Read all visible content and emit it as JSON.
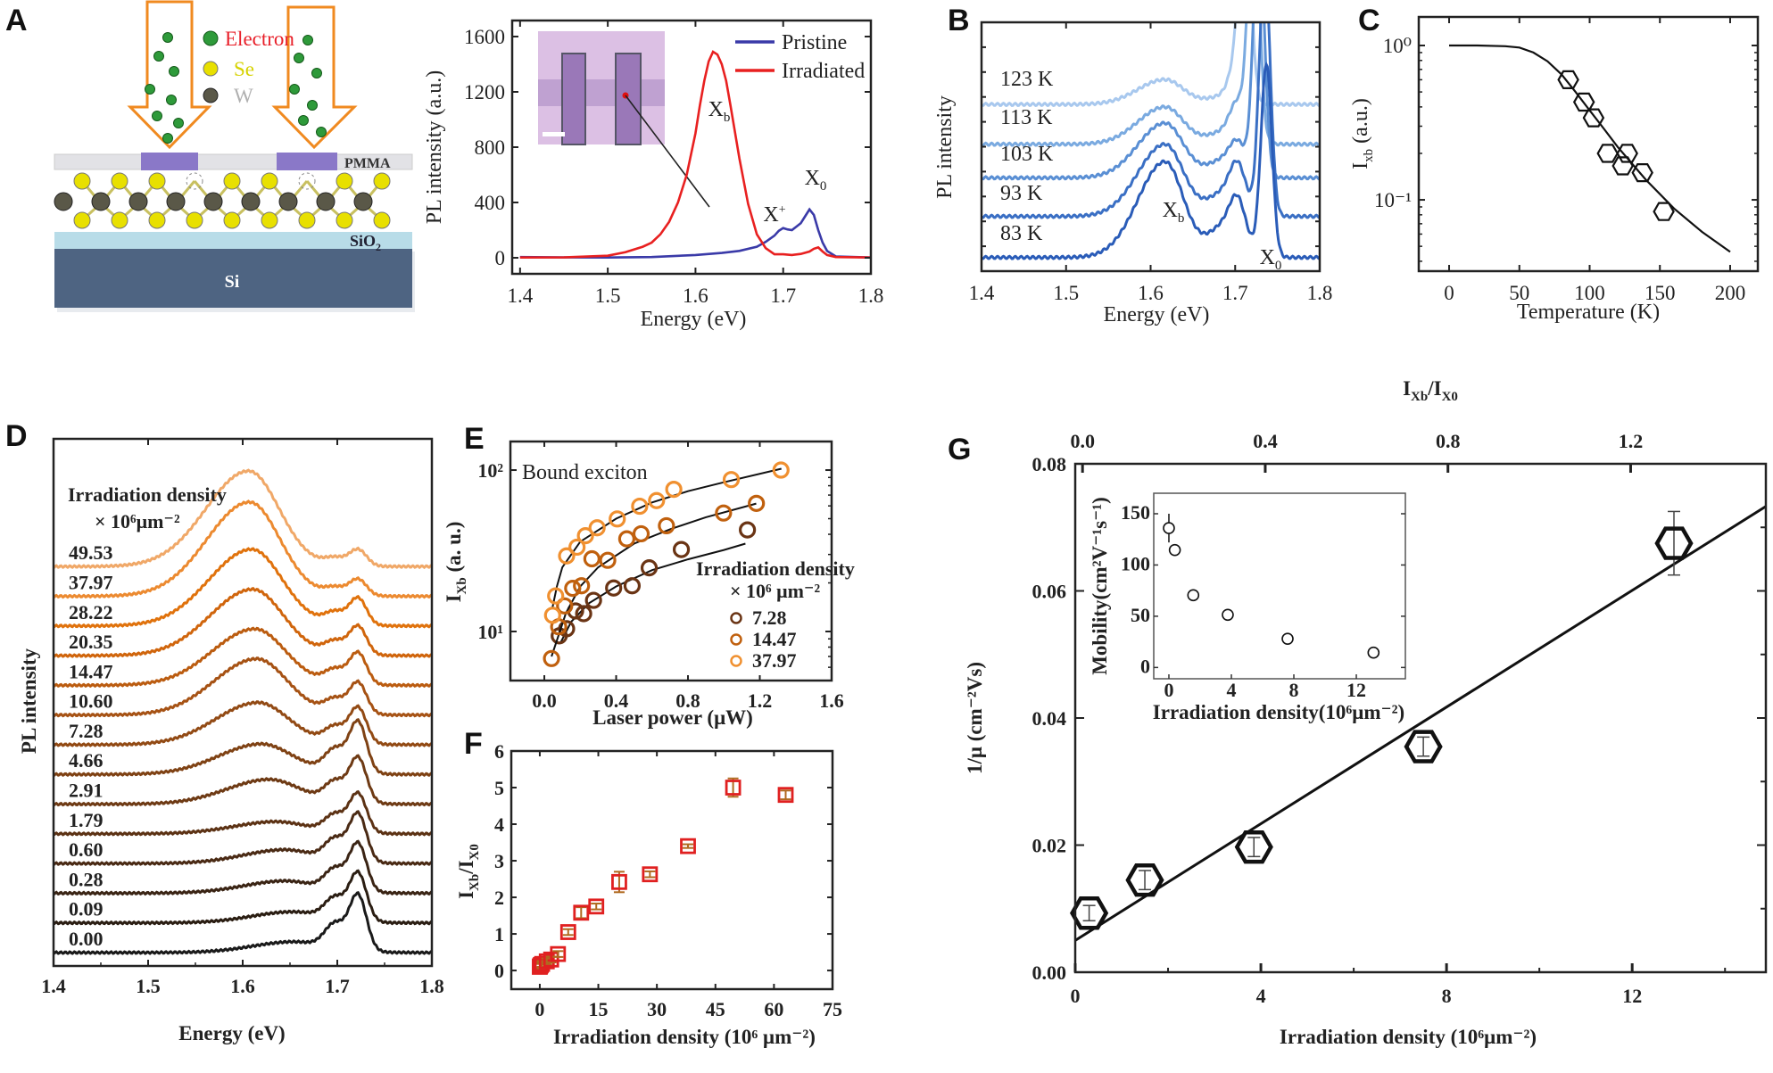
{
  "panels": {
    "a": "A",
    "b": "B",
    "c": "C",
    "d": "D",
    "e": "E",
    "f": "F",
    "g": "G"
  },
  "schematic": {
    "legend": [
      {
        "label": "Electron",
        "color": "#e8202a",
        "ball": "#2e9a3a"
      },
      {
        "label": "Se",
        "color": "#d6d200",
        "ball": "#e8e000"
      },
      {
        "label": "W",
        "color": "#b0b0b0",
        "ball": "#5a5848"
      }
    ],
    "pmma_label": "PMMA",
    "sio2_label": "SiO",
    "sio2_sub": "2",
    "si_label": "Si",
    "colors": {
      "arrow": "#f08a20",
      "pmma": "#e2e2e6",
      "window": "#8a78c8",
      "sio2": "#b8dce8",
      "si": "#4e6482"
    }
  },
  "chart_data": [
    {
      "id": "A",
      "type": "line",
      "xlabel": "Energy (eV)",
      "ylabel": "PL intensity (a.u.)",
      "xlim": [
        1.4,
        1.8
      ],
      "ylim": [
        0,
        1600
      ],
      "xticks": [
        1.4,
        1.5,
        1.6,
        1.7,
        1.8
      ],
      "yticks": [
        0,
        400,
        800,
        1200,
        1600
      ],
      "legend_position": "top-right",
      "series": [
        {
          "name": "Pristine",
          "color": "#3a3aa8",
          "x": [
            1.4,
            1.45,
            1.5,
            1.55,
            1.6,
            1.63,
            1.65,
            1.67,
            1.68,
            1.69,
            1.695,
            1.7,
            1.705,
            1.71,
            1.715,
            1.72,
            1.725,
            1.73,
            1.735,
            1.74,
            1.745,
            1.75,
            1.76,
            1.8
          ],
          "y": [
            5,
            3,
            2,
            5,
            20,
            35,
            50,
            80,
            115,
            160,
            195,
            215,
            205,
            200,
            225,
            250,
            300,
            350,
            310,
            200,
            110,
            50,
            10,
            2
          ]
        },
        {
          "name": "Irradiated",
          "color": "#e82020",
          "x": [
            1.4,
            1.45,
            1.5,
            1.52,
            1.54,
            1.55,
            1.56,
            1.57,
            1.58,
            1.59,
            1.6,
            1.605,
            1.61,
            1.615,
            1.62,
            1.625,
            1.63,
            1.635,
            1.64,
            1.65,
            1.66,
            1.67,
            1.68,
            1.69,
            1.7,
            1.71,
            1.72,
            1.73,
            1.735,
            1.74,
            1.745,
            1.75,
            1.76,
            1.8
          ],
          "y": [
            2,
            3,
            15,
            40,
            80,
            110,
            170,
            260,
            400,
            600,
            900,
            1100,
            1280,
            1420,
            1490,
            1470,
            1400,
            1280,
            1100,
            720,
            390,
            170,
            70,
            25,
            25,
            20,
            28,
            45,
            65,
            75,
            45,
            20,
            5,
            2
          ]
        }
      ],
      "annotations": [
        {
          "text": "X",
          "sub": "b"
        },
        {
          "text": "X",
          "sub": "0"
        },
        {
          "text": "X",
          "sup": "+"
        }
      ]
    },
    {
      "id": "B",
      "type": "line",
      "xlabel": "Energy (eV)",
      "ylabel": "PL intensity",
      "xlim": [
        1.4,
        1.8
      ],
      "xticks": [
        1.4,
        1.5,
        1.6,
        1.7,
        1.8
      ],
      "series": [
        {
          "name": "123 K",
          "color": "#a8c8ee",
          "baseline": 6.7,
          "xb_peak": 1.0,
          "x0_energy": 1.712,
          "x0_peak": 8,
          "trion_peak": 1.5
        },
        {
          "name": "113 K",
          "color": "#7aaae0",
          "baseline": 5.1,
          "xb_peak": 1.5,
          "x0_energy": 1.722,
          "x0_peak": 10,
          "trion_peak": 1.3
        },
        {
          "name": "103 K",
          "color": "#5a8fd4",
          "baseline": 3.75,
          "xb_peak": 2.2,
          "x0_energy": 1.728,
          "x0_peak": 10,
          "trion_peak": 0.9
        },
        {
          "name": "93 K",
          "color": "#3a6fc4",
          "baseline": 2.2,
          "xb_peak": 2.9,
          "x0_energy": 1.735,
          "x0_peak": 10,
          "trion_peak": 1.4
        },
        {
          "name": "83 K",
          "color": "#2a5cb8",
          "baseline": 0.55,
          "xb_peak": 3.85,
          "x0_energy": 1.737,
          "x0_peak": 7.7,
          "trion_peak": 1.4
        }
      ],
      "annotations": [
        {
          "text": "X",
          "sub": "b"
        },
        {
          "text": "X",
          "sub": "0"
        }
      ]
    },
    {
      "id": "C",
      "type": "scatter",
      "xlabel": "Temperature (K)",
      "ylabel": "I",
      "ylabel_sub": "xb",
      "ylabel_rest": " (a.u.)",
      "xlim": [
        0,
        200
      ],
      "xticks": [
        0,
        50,
        100,
        150,
        200
      ],
      "yscale": "log",
      "yticks": [
        1,
        0.1
      ],
      "ytick_labels": [
        "10⁰",
        "10⁻¹"
      ],
      "points": {
        "x": [
          84.8,
          96,
          102.8,
          112.8,
          126.8,
          123.6,
          137.6,
          152.8
        ],
        "y": [
          0.6,
          0.43,
          0.34,
          0.2,
          0.2,
          0.166,
          0.15,
          0.084
        ]
      },
      "fit": {
        "x": [
          0,
          20,
          40,
          50,
          60,
          70,
          80,
          90,
          100,
          110,
          120,
          140,
          160,
          180,
          200
        ],
        "y": [
          1,
          1,
          0.99,
          0.97,
          0.9,
          0.79,
          0.65,
          0.5,
          0.38,
          0.29,
          0.22,
          0.135,
          0.088,
          0.062,
          0.046
        ]
      },
      "marker": "hexagon"
    },
    {
      "id": "D",
      "type": "line",
      "xlabel": "Energy (eV)",
      "ylabel": "PL intensity",
      "legend_title": "Irradiation density",
      "legend_unit": "× 10⁶μm⁻²",
      "xlim": [
        1.4,
        1.8
      ],
      "xticks": [
        1.4,
        1.5,
        1.6,
        1.7,
        1.8
      ],
      "series": [
        {
          "name": "49.53",
          "color": "#f0a868",
          "xb_peak": 3.2,
          "xb_energy": 1.606,
          "x0_peak": 0.55
        },
        {
          "name": "37.97",
          "color": "#ec8a30",
          "xb_peak": 3.15,
          "xb_energy": 1.607,
          "x0_peak": 0.55
        },
        {
          "name": "28.22",
          "color": "#e0720c",
          "xb_peak": 2.55,
          "xb_energy": 1.609,
          "x0_peak": 0.9
        },
        {
          "name": "20.35",
          "color": "#d0650c",
          "xb_peak": 2.2,
          "xb_energy": 1.61,
          "x0_peak": 0.95
        },
        {
          "name": "14.47",
          "color": "#bb5c10",
          "xb_peak": 1.86,
          "xb_energy": 1.612,
          "x0_peak": 1.05
        },
        {
          "name": "10.60",
          "color": "#a65214",
          "xb_peak": 1.85,
          "xb_energy": 1.614,
          "x0_peak": 1.05
        },
        {
          "name": "7.28",
          "color": "#924a14",
          "xb_peak": 1.37,
          "xb_energy": 1.615,
          "x0_peak": 1.2
        },
        {
          "name": "4.66",
          "color": "#7f4214",
          "xb_peak": 0.95,
          "xb_energy": 1.617,
          "x0_peak": 1.7
        },
        {
          "name": "2.91",
          "color": "#6e3a14",
          "xb_peak": 0.75,
          "xb_energy": 1.625,
          "x0_peak": 1.5
        },
        {
          "name": "1.79",
          "color": "#5c3214",
          "xb_peak": 0.33,
          "xb_energy": 1.63,
          "x0_peak": 1.3
        },
        {
          "name": "0.60",
          "color": "#4a2a14",
          "xb_peak": 0.35,
          "xb_energy": 1.64,
          "x0_peak": 1.6
        },
        {
          "name": "0.28",
          "color": "#3a2414",
          "xb_peak": 0.3,
          "xb_energy": 1.64,
          "x0_peak": 1.6
        },
        {
          "name": "0.09",
          "color": "#2a1d12",
          "xb_peak": 0.25,
          "xb_energy": 1.65,
          "x0_peak": 1.6
        },
        {
          "name": "0.00",
          "color": "#1a1a1a",
          "xb_peak": 0.22,
          "xb_energy": 1.65,
          "x0_peak": 1.85
        }
      ]
    },
    {
      "id": "E",
      "type": "scatter",
      "title": "Bound exciton",
      "xlabel": "Laser power (μW)",
      "ylabel": "I",
      "ylabel_sub": "Xb",
      "ylabel_rest": " (a. u.)",
      "xlim": [
        0,
        1.6
      ],
      "xticks": [
        0.0,
        0.4,
        0.8,
        1.2,
        1.6
      ],
      "xtick_labels": [
        "0.0",
        "0.4",
        "0.8",
        "1.2",
        "1.6"
      ],
      "yscale": "log",
      "yticks": [
        10,
        100
      ],
      "ytick_labels": [
        "10¹",
        "10²"
      ],
      "legend_title": "Irradiation density",
      "legend_unit": "× 10⁶ μm⁻²",
      "legend_position": "right",
      "series": [
        {
          "name": "7.28",
          "color": "#6a3414",
          "x": [
            0.083,
            0.124,
            0.174,
            0.219,
            0.274,
            0.386,
            0.489,
            0.584,
            0.763,
            1.131
          ],
          "y": [
            9.4,
            10.4,
            13.4,
            12.9,
            15.6,
            18.6,
            19.2,
            24.8,
            32.2,
            42.6
          ],
          "fit": {
            "x": [
              0.09,
              0.15,
              0.25,
              0.4,
              0.6,
              0.8,
              1.0,
              1.12
            ],
            "y": [
              8.5,
              11.5,
              15,
              19,
              24,
              28,
              32,
              35
            ]
          }
        },
        {
          "name": "14.47",
          "color": "#c0600e",
          "x": [
            0.04,
            0.08,
            0.113,
            0.158,
            0.207,
            0.265,
            0.353,
            0.459,
            0.539,
            0.68,
            0.998,
            1.181
          ],
          "y": [
            6.8,
            10.7,
            14.4,
            18.5,
            19.2,
            28.2,
            27.6,
            37.5,
            40.3,
            45.2,
            54.2,
            62.2
          ],
          "fit": {
            "x": [
              0.04,
              0.08,
              0.12,
              0.2,
              0.3,
              0.5,
              0.7,
              0.9,
              1.18
            ],
            "y": [
              7,
              9.5,
              13,
              19,
              25,
              35,
              43,
              51,
              62
            ]
          }
        },
        {
          "name": "37.97",
          "color": "#f09030",
          "x": [
            0.046,
            0.063,
            0.124,
            0.182,
            0.229,
            0.294,
            0.406,
            0.531,
            0.625,
            0.721,
            1.041,
            1.318
          ],
          "y": [
            12.6,
            16.6,
            29.4,
            33.3,
            39.2,
            43.9,
            49.8,
            59.7,
            64.7,
            76.0,
            87.3,
            100
          ],
          "fit": {
            "x": [
              0.045,
              0.07,
              0.1,
              0.2,
              0.4,
              0.6,
              0.8,
              1.0,
              1.32
            ],
            "y": [
              14,
              19,
              25,
              36,
              50,
              63,
              74,
              84,
              102
            ]
          }
        }
      ]
    },
    {
      "id": "F",
      "type": "scatter",
      "xlabel": "Irradiation density (10⁶ μm⁻²)",
      "ylabel": "I",
      "ylabel_sub": "Xb",
      "ylabel_mid": "/I",
      "ylabel_sub2": "X0",
      "xlim": [
        0,
        75
      ],
      "xticks": [
        0,
        15,
        30,
        45,
        60,
        75
      ],
      "ylim": [
        0,
        6
      ],
      "yticks": [
        0,
        1,
        2,
        3,
        4,
        5,
        6
      ],
      "marker": "square",
      "marker_color": "#e02020",
      "errorbar_color": "#b06a20",
      "points": {
        "x": [
          0,
          0.09,
          0.28,
          0.6,
          1.79,
          2.91,
          4.66,
          7.28,
          10.6,
          14.47,
          20.35,
          28.22,
          37.97,
          49.53,
          63
        ],
        "y": [
          0.1,
          0.12,
          0.15,
          0.18,
          0.25,
          0.3,
          0.45,
          1.05,
          1.58,
          1.75,
          2.42,
          2.63,
          3.4,
          5.0,
          4.8
        ],
        "err": [
          0.08,
          0.08,
          0.08,
          0.08,
          0.08,
          0.08,
          0.08,
          0.08,
          0.15,
          0.08,
          0.28,
          0.08,
          0.05,
          0.25,
          0.12
        ]
      }
    },
    {
      "id": "G",
      "type": "scatter",
      "xlabel": "Irradiation density (10⁶μm⁻²)",
      "ylabel": "1/μ (cm⁻²Vs)",
      "top_xlabel": "I",
      "top_xlabel_sub": "Xb",
      "top_xlabel_mid": "/I",
      "top_xlabel_sub2": "X0",
      "xlim": [
        0,
        14.88
      ],
      "xticks": [
        0,
        4,
        8,
        12
      ],
      "ylim": [
        0,
        0.08
      ],
      "yticks": [
        0,
        0.02,
        0.04,
        0.06,
        0.08
      ],
      "ytick_labels": [
        "0.00",
        "0.02",
        "0.04",
        "0.06",
        "0.08"
      ],
      "top_xlim": [
        -0.016,
        1.496
      ],
      "top_xticks": [
        0.0,
        0.4,
        0.8,
        1.2
      ],
      "top_xtick_labels": [
        "0.0",
        "0.4",
        "0.8",
        "1.2"
      ],
      "marker": "hexagon",
      "points": {
        "x": [
          0.3,
          1.5,
          3.85,
          7.5,
          12.9
        ],
        "y": [
          0.0093,
          0.0145,
          0.0197,
          0.0355,
          0.0675
        ],
        "err": [
          0.0012,
          0.0015,
          0.0015,
          0.0015,
          0.005
        ]
      },
      "fit": {
        "x": [
          0,
          14.88
        ],
        "y": [
          0.005,
          0.0733
        ]
      },
      "inset": {
        "xlabel": "Irradiation density(10⁶μm⁻²)",
        "ylabel": "Mobility(cm²V⁻¹s⁻¹)",
        "xlim": [
          -0.97,
          15.14
        ],
        "ylim": [
          -11,
          170
        ],
        "xticks": [
          0,
          4,
          8,
          12
        ],
        "yticks": [
          0,
          50,
          100,
          150
        ],
        "points": {
          "x": [
            0,
            0.38,
            1.56,
            3.77,
            7.6,
            13.1
          ],
          "y": [
            136,
            114.6,
            70.5,
            51.4,
            28,
            14.5
          ],
          "err": [
            14,
            5,
            5,
            4,
            4,
            4
          ]
        }
      }
    }
  ]
}
